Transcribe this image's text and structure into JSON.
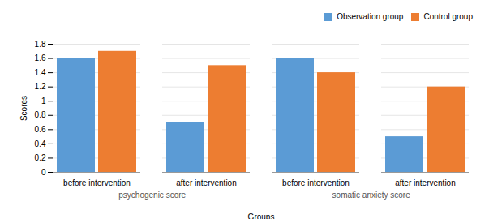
{
  "chart_data": {
    "type": "bar",
    "categories": [
      "before intervention",
      "after intervention",
      "before intervention",
      "after intervention"
    ],
    "groups": [
      "psychogenic score",
      "psychogenic score",
      "somatic anxiety score",
      "somatic anxiety score"
    ],
    "series": [
      {
        "name": "Observation group",
        "color": "#5B9BD5",
        "values": [
          1.6,
          0.7,
          1.6,
          0.5
        ]
      },
      {
        "name": "Control group",
        "color": "#ED7D31",
        "values": [
          1.7,
          1.5,
          1.4,
          1.2
        ]
      }
    ],
    "xlabel": "Groups",
    "ylabel": "Scores",
    "ylim": [
      0,
      1.8
    ],
    "yticks": [
      0,
      0.2,
      0.4,
      0.6,
      0.8,
      1,
      1.2,
      1.4,
      1.6,
      1.8
    ],
    "grid": true,
    "legend": "upper right"
  }
}
